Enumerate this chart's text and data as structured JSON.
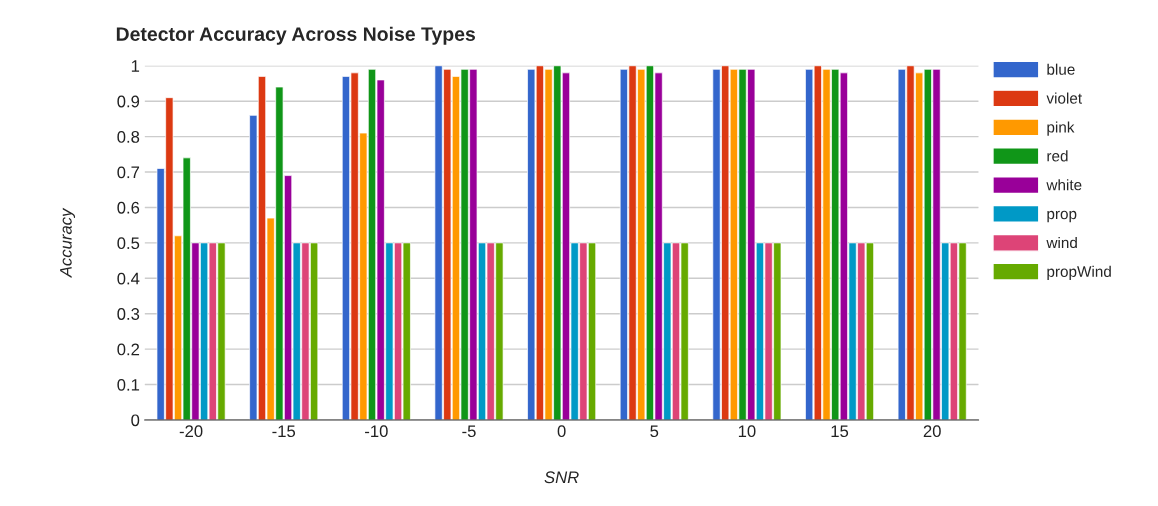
{
  "chart_data": {
    "type": "bar",
    "title": "Detector Accuracy Across Noise Types",
    "xlabel": "SNR",
    "ylabel": "Accuracy",
    "categories": [
      "-20",
      "-15",
      "-10",
      "-5",
      "0",
      "5",
      "10",
      "15",
      "20"
    ],
    "series": [
      {
        "name": "blue",
        "color": "#3366cc",
        "values": [
          0.71,
          0.86,
          0.97,
          1.0,
          0.99,
          0.99,
          0.99,
          0.99,
          0.99
        ]
      },
      {
        "name": "violet",
        "color": "#dc3912",
        "values": [
          0.91,
          0.97,
          0.98,
          0.99,
          1.0,
          1.0,
          1.0,
          1.0,
          1.0
        ]
      },
      {
        "name": "pink",
        "color": "#ff9900",
        "values": [
          0.52,
          0.57,
          0.81,
          0.97,
          0.99,
          0.99,
          0.99,
          0.99,
          0.98
        ]
      },
      {
        "name": "red",
        "color": "#109618",
        "values": [
          0.74,
          0.94,
          0.99,
          0.99,
          1.0,
          1.0,
          0.99,
          0.99,
          0.99
        ]
      },
      {
        "name": "white",
        "color": "#990099",
        "values": [
          0.5,
          0.69,
          0.96,
          0.99,
          0.98,
          0.98,
          0.99,
          0.98,
          0.99
        ]
      },
      {
        "name": "prop",
        "color": "#0099c6",
        "values": [
          0.5,
          0.5,
          0.5,
          0.5,
          0.5,
          0.5,
          0.5,
          0.5,
          0.5
        ]
      },
      {
        "name": "wind",
        "color": "#dd4477",
        "values": [
          0.5,
          0.5,
          0.5,
          0.5,
          0.5,
          0.5,
          0.5,
          0.5,
          0.5
        ]
      },
      {
        "name": "propWind",
        "color": "#66aa00",
        "values": [
          0.5,
          0.5,
          0.5,
          0.5,
          0.5,
          0.5,
          0.5,
          0.5,
          0.5
        ]
      }
    ],
    "ylim": [
      0,
      1
    ],
    "yticks": [
      0,
      0.1,
      0.2,
      0.3,
      0.4,
      0.5,
      0.6,
      0.7,
      0.8,
      0.9,
      1
    ],
    "grid": "y",
    "legend": "right"
  }
}
